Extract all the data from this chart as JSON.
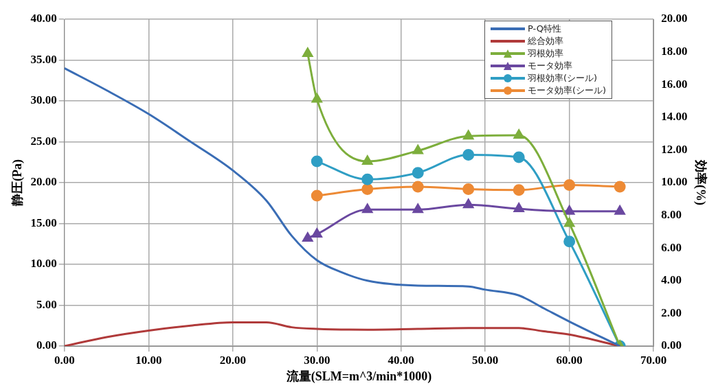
{
  "chart_data": {
    "type": "line",
    "xlabel": "流量(SLM=m^3/min*1000)",
    "ylabel": "静圧(Pa)",
    "y2label": "効率(%)",
    "xlim": [
      0,
      70
    ],
    "xticks": [
      {
        "value": 0,
        "label": "0.00"
      },
      {
        "value": 10,
        "label": "10.00"
      },
      {
        "value": 20,
        "label": "20.00"
      },
      {
        "value": 30,
        "label": "30.00"
      },
      {
        "value": 40,
        "label": "40.00"
      },
      {
        "value": 50,
        "label": "50.00"
      },
      {
        "value": 60,
        "label": "60.00"
      },
      {
        "value": 70,
        "label": "70.00"
      }
    ],
    "ylim": [
      0,
      40
    ],
    "yticks": [
      {
        "value": 0,
        "label": "0.00"
      },
      {
        "value": 5,
        "label": "5.00"
      },
      {
        "value": 10,
        "label": "10.00"
      },
      {
        "value": 15,
        "label": "15.00"
      },
      {
        "value": 20,
        "label": "20.00"
      },
      {
        "value": 25,
        "label": "25.00"
      },
      {
        "value": 30,
        "label": "30.00"
      },
      {
        "value": 35,
        "label": "35.00"
      },
      {
        "value": 40,
        "label": "40.00"
      }
    ],
    "y2lim": [
      0,
      20
    ],
    "y2ticks": [
      {
        "value": 0,
        "label": "0.00"
      },
      {
        "value": 2,
        "label": "2.00"
      },
      {
        "value": 4,
        "label": "4.00"
      },
      {
        "value": 6,
        "label": "6.00"
      },
      {
        "value": 8,
        "label": "8.00"
      },
      {
        "value": 10,
        "label": "10.00"
      },
      {
        "value": 12,
        "label": "12.00"
      },
      {
        "value": 14,
        "label": "14.00"
      },
      {
        "value": 16,
        "label": "16.00"
      },
      {
        "value": 18,
        "label": "18.00"
      },
      {
        "value": 20,
        "label": "20.00"
      }
    ],
    "grid": true,
    "legend": "top right",
    "series": [
      {
        "name": "P-Q特性",
        "color": "#3a6db5",
        "marker": "none",
        "x": [
          0,
          5,
          10,
          15,
          20,
          24,
          27,
          30,
          33,
          36,
          42,
          48,
          50,
          54,
          57,
          60,
          66
        ],
        "values": [
          34,
          31.3,
          28.4,
          25,
          21.5,
          17.8,
          13.5,
          10.5,
          9,
          8.0,
          7.4,
          7.3,
          6.9,
          6.2,
          4.6,
          3.0,
          0
        ]
      },
      {
        "name": "総合効率",
        "color": "#b03a3a",
        "marker": "none",
        "axis": "y2",
        "x": [
          0,
          5,
          10,
          15,
          20,
          24,
          27,
          30,
          36,
          42,
          48,
          54,
          57,
          60,
          66
        ],
        "values": [
          0,
          0.55,
          0.95,
          1.25,
          1.45,
          1.45,
          1.15,
          1.05,
          1.0,
          1.05,
          1.1,
          1.1,
          0.9,
          0.7,
          0
        ]
      },
      {
        "name": "羽根効率",
        "color": "#7dae3c",
        "marker": "triangle",
        "axis": "y2",
        "x": [
          28.9,
          30,
          36,
          42,
          48,
          54,
          60,
          66
        ],
        "values": [
          17.9,
          15.1,
          11.3,
          11.95,
          12.85,
          12.9,
          7.5,
          0
        ]
      },
      {
        "name": "モータ効率",
        "color": "#6a48a0",
        "marker": "triangle",
        "axis": "y2",
        "x": [
          28.9,
          30,
          36,
          42,
          48,
          54,
          60,
          66
        ],
        "values": [
          6.6,
          6.85,
          8.35,
          8.35,
          8.65,
          8.4,
          8.25,
          8.25
        ]
      },
      {
        "name": "羽根効率(シール)",
        "color": "#2f9ec4",
        "marker": "circle",
        "axis": "y2",
        "x": [
          30,
          36,
          42,
          48,
          54,
          60,
          66
        ],
        "values": [
          11.3,
          10.2,
          10.6,
          11.7,
          11.55,
          6.4,
          0
        ]
      },
      {
        "name": "モータ効率(シール)",
        "color": "#ed8a35",
        "marker": "circle",
        "axis": "y2",
        "x": [
          30,
          36,
          42,
          48,
          54,
          60,
          66
        ],
        "values": [
          9.2,
          9.6,
          9.75,
          9.6,
          9.55,
          9.85,
          9.75
        ]
      }
    ]
  }
}
